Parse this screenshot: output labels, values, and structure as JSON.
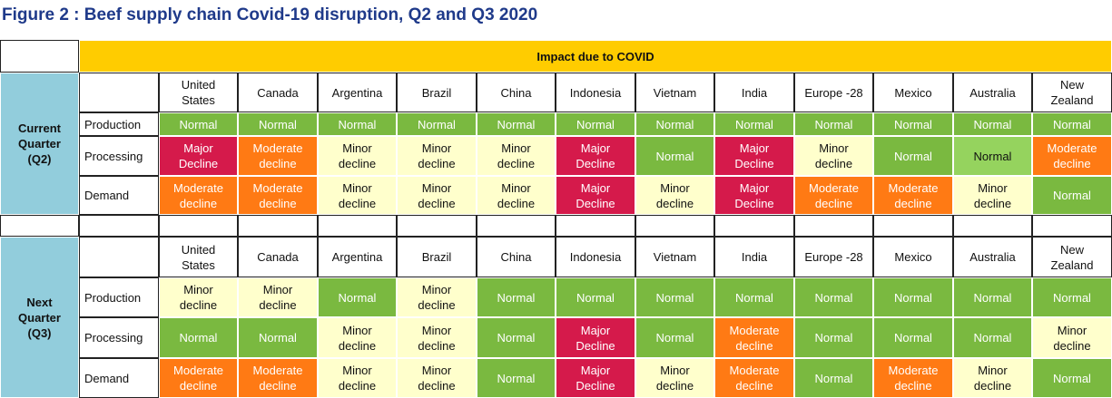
{
  "title": "Figure 2 : Beef supply chain Covid-19 disruption, Q2 and Q3 2020",
  "banner": "Impact due to COVID",
  "colors": {
    "normal": "#7ab940",
    "major": "#d51a4b",
    "moderate": "#ff7a14",
    "minor": "#ffffcc",
    "banner": "#ffcc00",
    "quarter": "#92cddc",
    "title": "#1f3a8a"
  },
  "countries": [
    "United States",
    "Canada",
    "Argentina",
    "Brazil",
    "China",
    "Indonesia",
    "Vietnam",
    "India",
    "Europe -28",
    "Mexico",
    "Australia",
    "New Zealand"
  ],
  "quarters": [
    {
      "label": "Current Quarter (Q2)",
      "rows": [
        {
          "category": "Production",
          "cells": [
            {
              "text": "Normal",
              "status": "normal"
            },
            {
              "text": "Normal",
              "status": "normal"
            },
            {
              "text": "Normal",
              "status": "normal"
            },
            {
              "text": "Normal",
              "status": "normal"
            },
            {
              "text": "Normal",
              "status": "normal"
            },
            {
              "text": "Normal",
              "status": "normal"
            },
            {
              "text": "Normal",
              "status": "normal"
            },
            {
              "text": "Normal",
              "status": "normal"
            },
            {
              "text": "Normal",
              "status": "normal"
            },
            {
              "text": "Normal",
              "status": "normal"
            },
            {
              "text": "Normal",
              "status": "normal"
            },
            {
              "text": "Normal",
              "status": "normal"
            }
          ]
        },
        {
          "category": "Processing",
          "cells": [
            {
              "text": "Major Decline",
              "status": "major"
            },
            {
              "text": "Moderate decline",
              "status": "moderate"
            },
            {
              "text": "Minor decline",
              "status": "minor"
            },
            {
              "text": "Minor decline",
              "status": "minor"
            },
            {
              "text": "Minor decline",
              "status": "minor"
            },
            {
              "text": "Major Decline",
              "status": "major"
            },
            {
              "text": "Normal",
              "status": "normal"
            },
            {
              "text": "Major Decline",
              "status": "major"
            },
            {
              "text": "Minor decline",
              "status": "minor"
            },
            {
              "text": "Normal",
              "status": "normal"
            },
            {
              "text": "Normal",
              "status": "light"
            },
            {
              "text": "Moderate decline",
              "status": "moderate"
            }
          ]
        },
        {
          "category": "Demand",
          "cells": [
            {
              "text": "Moderate decline",
              "status": "moderate"
            },
            {
              "text": "Moderate decline",
              "status": "moderate"
            },
            {
              "text": "Minor decline",
              "status": "minor"
            },
            {
              "text": "Minor decline",
              "status": "minor"
            },
            {
              "text": "Minor decline",
              "status": "minor"
            },
            {
              "text": "Major Decline",
              "status": "major"
            },
            {
              "text": "Minor decline",
              "status": "minor"
            },
            {
              "text": "Major Decline",
              "status": "major"
            },
            {
              "text": "Moderate decline",
              "status": "moderate"
            },
            {
              "text": "Moderate decline",
              "status": "moderate"
            },
            {
              "text": "Minor decline",
              "status": "minor"
            },
            {
              "text": "Normal",
              "status": "normal"
            }
          ]
        }
      ]
    },
    {
      "label": "Next Quarter (Q3)",
      "rows": [
        {
          "category": "Production",
          "cells": [
            {
              "text": "Minor decline",
              "status": "minor"
            },
            {
              "text": "Minor decline",
              "status": "minor"
            },
            {
              "text": "Normal",
              "status": "normal"
            },
            {
              "text": "Minor decline",
              "status": "minor"
            },
            {
              "text": "Normal",
              "status": "normal"
            },
            {
              "text": "Normal",
              "status": "normal"
            },
            {
              "text": "Normal",
              "status": "normal"
            },
            {
              "text": "Normal",
              "status": "normal"
            },
            {
              "text": "Normal",
              "status": "normal"
            },
            {
              "text": "Normal",
              "status": "normal"
            },
            {
              "text": "Normal",
              "status": "normal"
            },
            {
              "text": "Normal",
              "status": "normal"
            }
          ]
        },
        {
          "category": "Processing",
          "cells": [
            {
              "text": "Normal",
              "status": "normal"
            },
            {
              "text": "Normal",
              "status": "normal"
            },
            {
              "text": "Minor decline",
              "status": "minor"
            },
            {
              "text": "Minor decline",
              "status": "minor"
            },
            {
              "text": "Normal",
              "status": "normal"
            },
            {
              "text": "Major Decline",
              "status": "major"
            },
            {
              "text": "Normal",
              "status": "normal"
            },
            {
              "text": "Moderate decline",
              "status": "moderate"
            },
            {
              "text": "Normal",
              "status": "normal"
            },
            {
              "text": "Normal",
              "status": "normal"
            },
            {
              "text": "Normal",
              "status": "normal"
            },
            {
              "text": "Minor decline",
              "status": "minor"
            }
          ]
        },
        {
          "category": "Demand",
          "cells": [
            {
              "text": "Moderate decline",
              "status": "moderate"
            },
            {
              "text": "Moderate decline",
              "status": "moderate"
            },
            {
              "text": "Minor decline",
              "status": "minor"
            },
            {
              "text": "Minor decline",
              "status": "minor"
            },
            {
              "text": "Normal",
              "status": "normal"
            },
            {
              "text": "Major Decline",
              "status": "major"
            },
            {
              "text": "Minor decline",
              "status": "minor"
            },
            {
              "text": "Moderate decline",
              "status": "moderate"
            },
            {
              "text": "Normal",
              "status": "normal"
            },
            {
              "text": "Moderate decline",
              "status": "moderate"
            },
            {
              "text": "Minor decline",
              "status": "minor"
            },
            {
              "text": "Normal",
              "status": "normal"
            }
          ]
        }
      ]
    }
  ]
}
